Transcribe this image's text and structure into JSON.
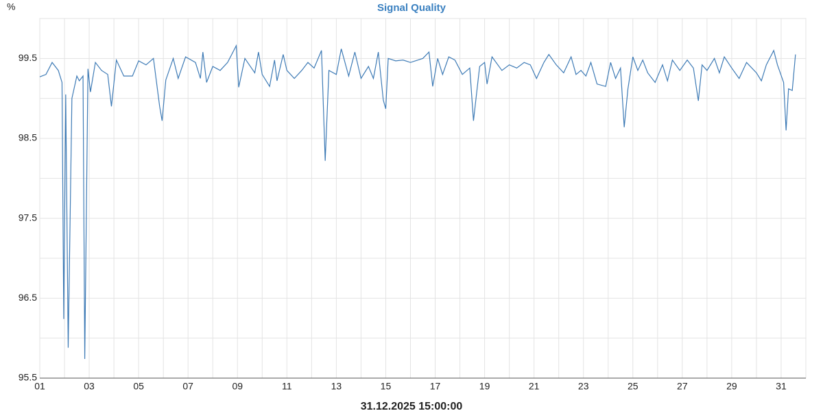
{
  "chart_data": {
    "type": "line",
    "title": "Signal Quality",
    "y_label": "%",
    "x_label": "31.12.2025 15:00:00",
    "grid": true,
    "xlim": [
      1,
      32
    ],
    "ylim": [
      95.5,
      100
    ],
    "xticks": [
      {
        "value": 1,
        "label": "01"
      },
      {
        "value": 3,
        "label": "03"
      },
      {
        "value": 5,
        "label": "05"
      },
      {
        "value": 7,
        "label": "07"
      },
      {
        "value": 9,
        "label": "09"
      },
      11,
      13,
      15,
      17,
      19,
      21,
      23,
      25,
      27,
      29,
      31
    ],
    "yticks": [
      95.5,
      96.5,
      97.5,
      98.5,
      99.5
    ],
    "x": [
      1.0,
      1.25,
      1.5,
      1.75,
      1.9,
      1.97,
      2.05,
      2.15,
      2.3,
      2.5,
      2.6,
      2.75,
      2.82,
      2.95,
      3.05,
      3.25,
      3.5,
      3.75,
      3.9,
      4.1,
      4.4,
      4.75,
      5.0,
      5.3,
      5.6,
      5.85,
      5.95,
      6.1,
      6.4,
      6.6,
      6.9,
      7.3,
      7.5,
      7.6,
      7.75,
      8.0,
      8.3,
      8.6,
      8.95,
      9.05,
      9.3,
      9.7,
      9.85,
      10.0,
      10.3,
      10.5,
      10.6,
      10.85,
      11.0,
      11.3,
      11.6,
      11.85,
      12.1,
      12.4,
      12.55,
      12.7,
      13.0,
      13.2,
      13.5,
      13.75,
      14.0,
      14.3,
      14.5,
      14.7,
      14.9,
      15.0,
      15.1,
      15.4,
      15.7,
      16.0,
      16.5,
      16.75,
      16.9,
      17.1,
      17.3,
      17.55,
      17.8,
      18.1,
      18.4,
      18.55,
      18.8,
      19.0,
      19.1,
      19.3,
      19.7,
      20.0,
      20.3,
      20.6,
      20.85,
      21.1,
      21.4,
      21.6,
      21.9,
      22.2,
      22.5,
      22.7,
      22.9,
      23.1,
      23.3,
      23.55,
      23.9,
      24.1,
      24.3,
      24.5,
      24.65,
      24.8,
      25.0,
      25.2,
      25.4,
      25.6,
      25.9,
      26.2,
      26.4,
      26.6,
      26.9,
      27.2,
      27.45,
      27.65,
      27.8,
      28.0,
      28.3,
      28.5,
      28.7,
      29.0,
      29.3,
      29.6,
      30.0,
      30.2,
      30.4,
      30.7,
      30.85,
      31.1,
      31.2,
      31.3,
      31.45,
      31.58
    ],
    "series": [
      {
        "name": "Signal Quality",
        "color": "#3d7ab5",
        "values": [
          99.27,
          99.3,
          99.45,
          99.35,
          99.2,
          96.24,
          99.05,
          95.88,
          99.0,
          99.28,
          99.22,
          99.28,
          95.74,
          99.37,
          99.08,
          99.45,
          99.35,
          99.3,
          98.9,
          99.48,
          99.28,
          99.28,
          99.47,
          99.42,
          99.5,
          98.9,
          98.72,
          99.23,
          99.5,
          99.25,
          99.52,
          99.45,
          99.25,
          99.58,
          99.2,
          99.4,
          99.35,
          99.45,
          99.66,
          99.14,
          99.5,
          99.32,
          99.58,
          99.3,
          99.15,
          99.48,
          99.22,
          99.55,
          99.35,
          99.25,
          99.35,
          99.45,
          99.38,
          99.6,
          98.22,
          99.35,
          99.3,
          99.62,
          99.28,
          99.58,
          99.25,
          99.4,
          99.25,
          99.58,
          98.98,
          98.87,
          99.5,
          99.47,
          99.48,
          99.45,
          99.5,
          99.58,
          99.15,
          99.5,
          99.3,
          99.52,
          99.48,
          99.3,
          99.38,
          98.72,
          99.4,
          99.45,
          99.18,
          99.52,
          99.35,
          99.42,
          99.38,
          99.45,
          99.42,
          99.25,
          99.45,
          99.55,
          99.42,
          99.32,
          99.52,
          99.3,
          99.35,
          99.28,
          99.45,
          99.18,
          99.15,
          99.45,
          99.25,
          99.38,
          98.64,
          99.12,
          99.52,
          99.35,
          99.48,
          99.32,
          99.2,
          99.42,
          99.22,
          99.48,
          99.35,
          99.48,
          99.38,
          98.97,
          99.42,
          99.35,
          99.5,
          99.32,
          99.52,
          99.38,
          99.25,
          99.45,
          99.32,
          99.22,
          99.42,
          99.6,
          99.42,
          99.2,
          98.6,
          99.12,
          99.1,
          99.55
        ]
      }
    ]
  }
}
